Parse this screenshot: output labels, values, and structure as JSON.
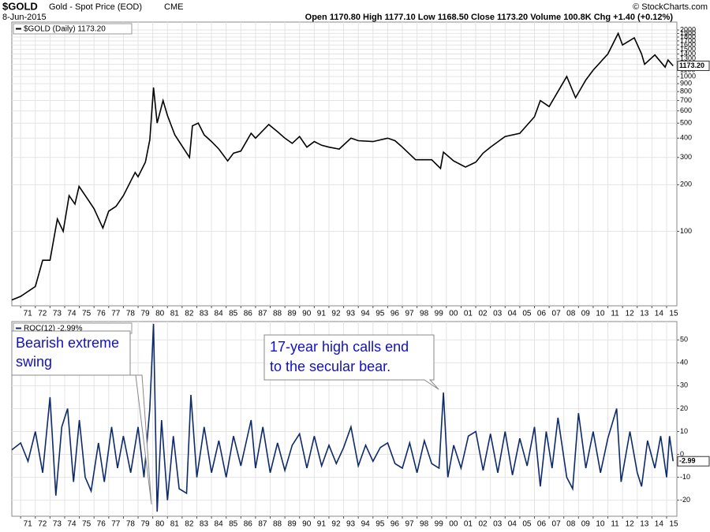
{
  "header": {
    "symbol": "$GOLD",
    "name": "Gold - Spot Price (EOD)",
    "exchange": "CME",
    "date": "8-Jun-2015",
    "quote": "Open 1170.80  High 1177.10  Low 1168.50  Close 1173.20  Volume 100.8K  Chg +1.40 (+0.12%)",
    "credit": "© StockCharts.com"
  },
  "chart_data": [
    {
      "type": "line",
      "log": true,
      "grid": true,
      "legend": "top-left",
      "last_label": "1173.20",
      "xlim": [
        1970.4,
        2015.7
      ],
      "ylim": [
        33,
        2250
      ],
      "yticks": [
        100,
        200,
        300,
        400,
        500,
        600,
        700,
        800,
        900,
        1000,
        1100,
        1200,
        1300,
        1400,
        1500,
        1600,
        1700,
        1800,
        1900,
        2000
      ],
      "xticks": [
        {
          "value": 1971,
          "label": "71"
        },
        {
          "value": 1972,
          "label": "72"
        },
        {
          "value": 1973,
          "label": "73"
        },
        {
          "value": 1974,
          "label": "74"
        },
        {
          "value": 1975,
          "label": "75"
        },
        {
          "value": 1976,
          "label": "76"
        },
        {
          "value": 1977,
          "label": "77"
        },
        {
          "value": 1978,
          "label": "78"
        },
        {
          "value": 1979,
          "label": "79"
        },
        {
          "value": 1980,
          "label": "80"
        },
        {
          "value": 1981,
          "label": "81"
        },
        {
          "value": 1982,
          "label": "82"
        },
        {
          "value": 1983,
          "label": "83"
        },
        {
          "value": 1984,
          "label": "84"
        },
        {
          "value": 1985,
          "label": "85"
        },
        {
          "value": 1986,
          "label": "86"
        },
        {
          "value": 1987,
          "label": "87"
        },
        {
          "value": 1988,
          "label": "88"
        },
        {
          "value": 1989,
          "label": "89"
        },
        {
          "value": 1990,
          "label": "90"
        },
        {
          "value": 1991,
          "label": "91"
        },
        {
          "value": 1992,
          "label": "92"
        },
        {
          "value": 1993,
          "label": "93"
        },
        {
          "value": 1994,
          "label": "94"
        },
        {
          "value": 1995,
          "label": "95"
        },
        {
          "value": 1996,
          "label": "96"
        },
        {
          "value": 1997,
          "label": "97"
        },
        {
          "value": 1998,
          "label": "98"
        },
        {
          "value": 1999,
          "label": "99"
        },
        {
          "value": 2000,
          "label": "00"
        },
        {
          "value": 2001,
          "label": "01"
        },
        {
          "value": 2002,
          "label": "02"
        },
        {
          "value": 2003,
          "label": "03"
        },
        {
          "value": 2004,
          "label": "04"
        },
        {
          "value": 2005,
          "label": "05"
        },
        {
          "value": 2006,
          "label": "06"
        },
        {
          "value": 2007,
          "label": "07"
        },
        {
          "value": 2008,
          "label": "08"
        },
        {
          "value": 2009,
          "label": "09"
        },
        {
          "value": 2010,
          "label": "10"
        },
        {
          "value": 2011,
          "label": "11"
        },
        {
          "value": 2012,
          "label": "12"
        },
        {
          "value": 2013,
          "label": "13"
        },
        {
          "value": 2014,
          "label": "14"
        },
        {
          "value": 2015,
          "label": "15"
        }
      ],
      "x": [
        1970.4,
        1971,
        1972,
        1972.5,
        1973,
        1973.5,
        1973.9,
        1974.3,
        1974.7,
        1974.98,
        1975.5,
        1976,
        1976.6,
        1977,
        1977.5,
        1978,
        1978.8,
        1979,
        1979.5,
        1979.8,
        1980.05,
        1980.3,
        1980.7,
        1981,
        1981.5,
        1982.5,
        1982.7,
        1983.1,
        1983.5,
        1984,
        1984.5,
        1985.1,
        1985.5,
        1986,
        1986.7,
        1987,
        1987.9,
        1988.5,
        1989,
        1989.5,
        1990,
        1990.5,
        1991,
        1991.5,
        1992,
        1992.7,
        1993.5,
        1994,
        1995,
        1996,
        1996.5,
        1997,
        1997.9,
        1998.5,
        1999,
        1999.6,
        1999.8,
        2000.5,
        2001.3,
        2002,
        2002.5,
        2003,
        2004,
        2005,
        2006,
        2006.4,
        2007,
        2008.2,
        2008.8,
        2009.5,
        2010,
        2011,
        2011.7,
        2012,
        2012.8,
        2013.3,
        2013.5,
        2014.2,
        2014.9,
        2015.1,
        2015.44
      ],
      "series": [
        {
          "name": "$GOLD (Daily) 1173.20",
          "color": "#000000",
          "values": [
            36,
            38,
            44,
            65,
            65,
            120,
            100,
            170,
            150,
            195,
            165,
            140,
            105,
            135,
            145,
            170,
            240,
            225,
            280,
            390,
            850,
            500,
            700,
            560,
            420,
            300,
            480,
            500,
            420,
            380,
            340,
            285,
            320,
            330,
            430,
            400,
            490,
            440,
            400,
            370,
            410,
            350,
            380,
            360,
            350,
            340,
            400,
            385,
            380,
            400,
            385,
            350,
            290,
            290,
            290,
            255,
            325,
            285,
            260,
            280,
            320,
            350,
            410,
            430,
            550,
            700,
            640,
            1000,
            730,
            950,
            1100,
            1400,
            1900,
            1600,
            1780,
            1400,
            1200,
            1380,
            1150,
            1280,
            1173.2
          ]
        }
      ]
    },
    {
      "type": "line",
      "log": false,
      "grid": true,
      "legend": "top-left",
      "last_label": "-2.99",
      "xlim": [
        1970.4,
        2015.7
      ],
      "ylim": [
        -27,
        58
      ],
      "yticks": [
        -20,
        -10,
        0,
        10,
        20,
        30,
        40,
        50
      ],
      "xticks": [
        {
          "value": 1971,
          "label": "71"
        },
        {
          "value": 1972,
          "label": "72"
        },
        {
          "value": 1973,
          "label": "73"
        },
        {
          "value": 1974,
          "label": "74"
        },
        {
          "value": 1975,
          "label": "75"
        },
        {
          "value": 1976,
          "label": "76"
        },
        {
          "value": 1977,
          "label": "77"
        },
        {
          "value": 1978,
          "label": "78"
        },
        {
          "value": 1979,
          "label": "79"
        },
        {
          "value": 1980,
          "label": "80"
        },
        {
          "value": 1981,
          "label": "81"
        },
        {
          "value": 1982,
          "label": "82"
        },
        {
          "value": 1983,
          "label": "83"
        },
        {
          "value": 1984,
          "label": "84"
        },
        {
          "value": 1985,
          "label": "85"
        },
        {
          "value": 1986,
          "label": "86"
        },
        {
          "value": 1987,
          "label": "87"
        },
        {
          "value": 1988,
          "label": "88"
        },
        {
          "value": 1989,
          "label": "89"
        },
        {
          "value": 1990,
          "label": "90"
        },
        {
          "value": 1991,
          "label": "91"
        },
        {
          "value": 1992,
          "label": "92"
        },
        {
          "value": 1993,
          "label": "93"
        },
        {
          "value": 1994,
          "label": "94"
        },
        {
          "value": 1995,
          "label": "95"
        },
        {
          "value": 1996,
          "label": "96"
        },
        {
          "value": 1997,
          "label": "97"
        },
        {
          "value": 1998,
          "label": "98"
        },
        {
          "value": 1999,
          "label": "99"
        },
        {
          "value": 2000,
          "label": "00"
        },
        {
          "value": 2001,
          "label": "01"
        },
        {
          "value": 2002,
          "label": "02"
        },
        {
          "value": 2003,
          "label": "03"
        },
        {
          "value": 2004,
          "label": "04"
        },
        {
          "value": 2005,
          "label": "05"
        },
        {
          "value": 2006,
          "label": "06"
        },
        {
          "value": 2007,
          "label": "07"
        },
        {
          "value": 2008,
          "label": "08"
        },
        {
          "value": 2009,
          "label": "09"
        },
        {
          "value": 2010,
          "label": "10"
        },
        {
          "value": 2011,
          "label": "11"
        },
        {
          "value": 2012,
          "label": "12"
        },
        {
          "value": 2013,
          "label": "13"
        },
        {
          "value": 2014,
          "label": "14"
        },
        {
          "value": 2015,
          "label": "15"
        }
      ],
      "x": [
        1970.4,
        1971,
        1971.5,
        1972,
        1972.5,
        1973,
        1973.4,
        1973.8,
        1974.2,
        1974.6,
        1975,
        1975.4,
        1975.8,
        1976.3,
        1976.7,
        1977.2,
        1977.6,
        1978,
        1978.5,
        1979,
        1979.4,
        1979.8,
        1980.05,
        1980.3,
        1980.6,
        1981,
        1981.4,
        1981.8,
        1982.3,
        1982.6,
        1983,
        1983.5,
        1984,
        1984.5,
        1985,
        1985.5,
        1986,
        1986.7,
        1987,
        1987.5,
        1988,
        1988.5,
        1989,
        1989.5,
        1990,
        1990.5,
        1991,
        1991.5,
        1992,
        1992.5,
        1993,
        1993.5,
        1994,
        1994.5,
        1995,
        1995.5,
        1996,
        1996.5,
        1997,
        1997.5,
        1998,
        1998.5,
        1999,
        1999.5,
        1999.8,
        2000.1,
        2000.5,
        2001,
        2001.5,
        2002,
        2002.5,
        2003,
        2003.5,
        2004,
        2004.5,
        2005,
        2005.5,
        2006,
        2006.4,
        2006.8,
        2007.2,
        2007.6,
        2008.2,
        2008.6,
        2009,
        2009.5,
        2010,
        2010.5,
        2011,
        2011.6,
        2011.9,
        2012.5,
        2013,
        2013.3,
        2013.7,
        2014.2,
        2014.6,
        2015,
        2015.2,
        2015.44
      ],
      "series": [
        {
          "name": "ROC(12) -2.99%",
          "color": "#0d2a6b",
          "values": [
            2,
            5,
            -3,
            10,
            -8,
            25,
            -18,
            12,
            20,
            -12,
            15,
            -10,
            -16,
            5,
            -12,
            12,
            -6,
            8,
            -8,
            12,
            -10,
            20,
            57,
            -25,
            15,
            -20,
            8,
            -15,
            -17,
            26,
            -10,
            12,
            -8,
            6,
            -10,
            8,
            -5,
            15,
            -6,
            12,
            -8,
            5,
            -7,
            4,
            9,
            -6,
            8,
            -5,
            4,
            -4,
            3,
            12,
            -5,
            4,
            -3,
            3,
            5,
            -4,
            -6,
            5,
            -8,
            6,
            -4,
            -6,
            27,
            -10,
            4,
            -6,
            8,
            10,
            -7,
            9,
            -8,
            10,
            -9,
            7,
            -5,
            12,
            -14,
            10,
            -6,
            16,
            -10,
            -15,
            18,
            -6,
            10,
            -8,
            7,
            20,
            -12,
            10,
            -8,
            -14,
            6,
            -6,
            8,
            -10,
            8,
            -2.99
          ]
        }
      ],
      "annotations": [
        {
          "lines": [
            "Bearish extreme",
            "swing"
          ]
        },
        {
          "lines": [
            "17-year high calls end",
            "to the secular bear."
          ]
        }
      ]
    }
  ]
}
